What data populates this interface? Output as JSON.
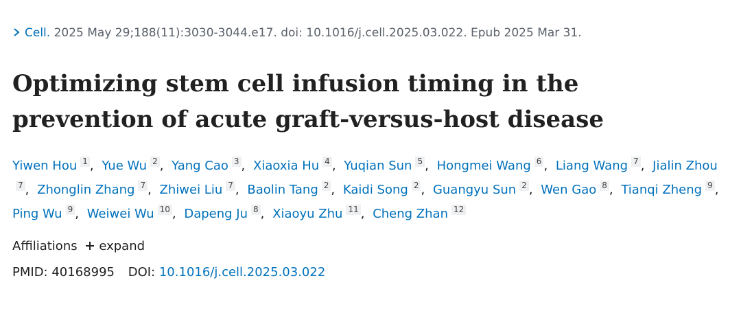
{
  "citation": {
    "journal": "Cell.",
    "details": "2025 May 29;188(11):3030-3044.e17. doi: 10.1016/j.cell.2025.03.022. Epub 2025 Mar 31."
  },
  "title": "Optimizing stem cell infusion timing in the prevention of acute graft-versus-host disease",
  "author_separator": ",",
  "authors": [
    {
      "name": "Yiwen Hou",
      "affiliation": 1
    },
    {
      "name": "Yue Wu",
      "affiliation": 2
    },
    {
      "name": "Yang Cao",
      "affiliation": 3
    },
    {
      "name": "Xiaoxia Hu",
      "affiliation": 4
    },
    {
      "name": "Yuqian Sun",
      "affiliation": 5
    },
    {
      "name": "Hongmei Wang",
      "affiliation": 6
    },
    {
      "name": "Liang Wang",
      "affiliation": 7
    },
    {
      "name": "Jialin Zhou",
      "affiliation": 7
    },
    {
      "name": "Zhonglin Zhang",
      "affiliation": 7
    },
    {
      "name": "Zhiwei Liu",
      "affiliation": 7
    },
    {
      "name": "Baolin Tang",
      "affiliation": 2
    },
    {
      "name": "Kaidi Song",
      "affiliation": 2
    },
    {
      "name": "Guangyu Sun",
      "affiliation": 2
    },
    {
      "name": "Wen Gao",
      "affiliation": 8
    },
    {
      "name": "Tianqi Zheng",
      "affiliation": 9
    },
    {
      "name": "Ping Wu",
      "affiliation": 9
    },
    {
      "name": "Weiwei Wu",
      "affiliation": 10
    },
    {
      "name": "Dapeng Ju",
      "affiliation": 8
    },
    {
      "name": "Xiaoyu Zhu",
      "affiliation": 11
    },
    {
      "name": "Cheng Zhan",
      "affiliation": 12
    }
  ],
  "affiliations": {
    "label": "Affiliations",
    "toggle": "expand"
  },
  "identifiers": {
    "pmid_label": "PMID:",
    "pmid": "40168995",
    "doi_label": "DOI:",
    "doi": "10.1016/j.cell.2025.03.022"
  }
}
